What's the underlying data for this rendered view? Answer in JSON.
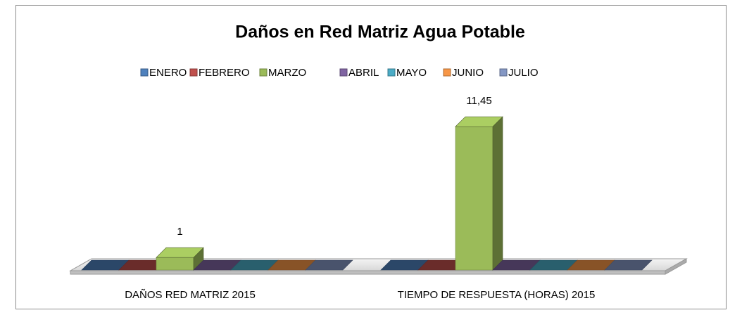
{
  "chart_data": {
    "type": "bar3d",
    "title": "Daños en Red Matriz Agua Potable",
    "categories": [
      "DAÑOS RED MATRIZ 2015",
      "TIEMPO DE RESPUESTA (HORAS) 2015"
    ],
    "legend": "top",
    "series": [
      {
        "name": "ENERO",
        "color": "#4f81bd",
        "values": [
          0,
          0
        ]
      },
      {
        "name": "FEBRERO",
        "color": "#c0504d",
        "values": [
          0,
          0
        ]
      },
      {
        "name": "MARZO",
        "color": "#9bbb59",
        "values": [
          1,
          11.45
        ],
        "value_labels": [
          "1",
          "11,45"
        ]
      },
      {
        "name": "ABRIL",
        "color": "#8064a2",
        "values": [
          0,
          0
        ]
      },
      {
        "name": "MAYO",
        "color": "#4bacc6",
        "values": [
          0,
          0
        ]
      },
      {
        "name": "JUNIO",
        "color": "#f79646",
        "values": [
          0,
          0
        ]
      },
      {
        "name": "JULIO",
        "color": "#8497c4",
        "values": [
          0,
          0
        ]
      }
    ]
  }
}
